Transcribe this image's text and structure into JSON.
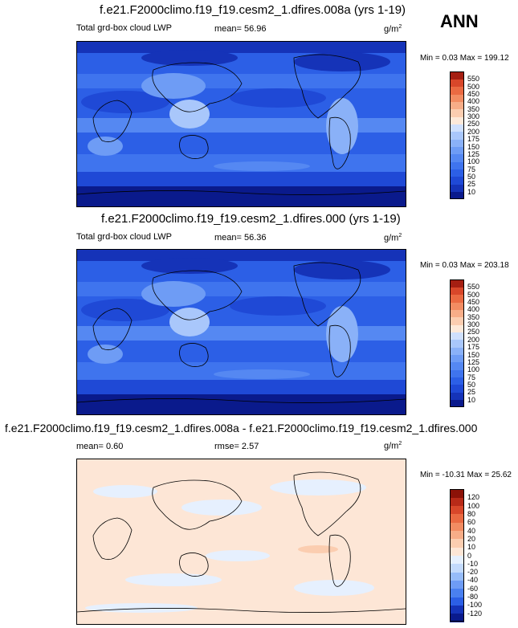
{
  "season": "ANN",
  "panels": [
    {
      "title": "f.e21.F2000climo.f19_f19.cesm2_1.dfires.008a (yrs 1-19)",
      "left_label": "Total grd-box cloud LWP",
      "mid_label": "mean=  56.96",
      "units": "g/m",
      "units_sup": "2",
      "minmax": "Min =  0.03 Max = 199.12"
    },
    {
      "title": "f.e21.F2000climo.f19_f19.cesm2_1.dfires.000 (yrs 1-19)",
      "left_label": "Total grd-box cloud LWP",
      "mid_label": "mean=  56.36",
      "units": "g/m",
      "units_sup": "2",
      "minmax": "Min =  0.03 Max = 203.18"
    },
    {
      "title": "f.e21.F2000climo.f19_f19.cesm2_1.dfires.008a - f.e21.F2000climo.f19_f19.cesm2_1.dfires.000",
      "left_label": "mean=  0.60",
      "mid_label": "rmse=  2.57",
      "units": "g/m",
      "units_sup": "2",
      "minmax": "Min = -10.31 Max = 25.62"
    }
  ],
  "chart_data": [
    {
      "type": "heatmap",
      "title": "f.e21.F2000climo.f19_f19.cesm2_1.dfires.008a (yrs 1-19)",
      "variable": "Total grd-box cloud LWP",
      "units": "g/m2",
      "mean": 56.96,
      "min": 0.03,
      "max": 199.12,
      "colorbar_levels": [
        10,
        25,
        50,
        75,
        100,
        125,
        150,
        175,
        200,
        250,
        300,
        350,
        400,
        450,
        500,
        550
      ],
      "colorbar_colors": [
        "#0a1a8c",
        "#1533b8",
        "#1f49d6",
        "#2c5fe6",
        "#3f74ee",
        "#5588f2",
        "#6e9cf5",
        "#8ab1f8",
        "#a9c7fb",
        "#cfe0fd",
        "#fde9d9",
        "#fbcdb0",
        "#f7ad88",
        "#f28c62",
        "#ea6a42",
        "#d8472a",
        "#a51f12"
      ]
    },
    {
      "type": "heatmap",
      "title": "f.e21.F2000climo.f19_f19.cesm2_1.dfires.000 (yrs 1-19)",
      "variable": "Total grd-box cloud LWP",
      "units": "g/m2",
      "mean": 56.36,
      "min": 0.03,
      "max": 203.18,
      "colorbar_levels": [
        10,
        25,
        50,
        75,
        100,
        125,
        150,
        175,
        200,
        250,
        300,
        350,
        400,
        450,
        500,
        550
      ],
      "colorbar_colors": [
        "#0a1a8c",
        "#1533b8",
        "#1f49d6",
        "#2c5fe6",
        "#3f74ee",
        "#5588f2",
        "#6e9cf5",
        "#8ab1f8",
        "#a9c7fb",
        "#cfe0fd",
        "#fde9d9",
        "#fbcdb0",
        "#f7ad88",
        "#f28c62",
        "#ea6a42",
        "#d8472a",
        "#a51f12"
      ]
    },
    {
      "type": "heatmap",
      "title": "f.e21.F2000climo.f19_f19.cesm2_1.dfires.008a - f.e21.F2000climo.f19_f19.cesm2_1.dfires.000",
      "units": "g/m2",
      "mean": 0.6,
      "rmse": 2.57,
      "min": -10.31,
      "max": 25.62,
      "colorbar_levels": [
        -120,
        -100,
        -80,
        -60,
        -40,
        -20,
        -10,
        0,
        10,
        20,
        40,
        60,
        80,
        100,
        120
      ],
      "colorbar_colors": [
        "#0a1a8c",
        "#1533b8",
        "#2c5fe6",
        "#4a80f0",
        "#6e9cf5",
        "#96bcf9",
        "#c3dafc",
        "#e6f0fe",
        "#fde6d6",
        "#fbcdb0",
        "#f7ad88",
        "#f28c62",
        "#ea6a42",
        "#d8472a",
        "#b82a18",
        "#8c1208"
      ]
    }
  ]
}
